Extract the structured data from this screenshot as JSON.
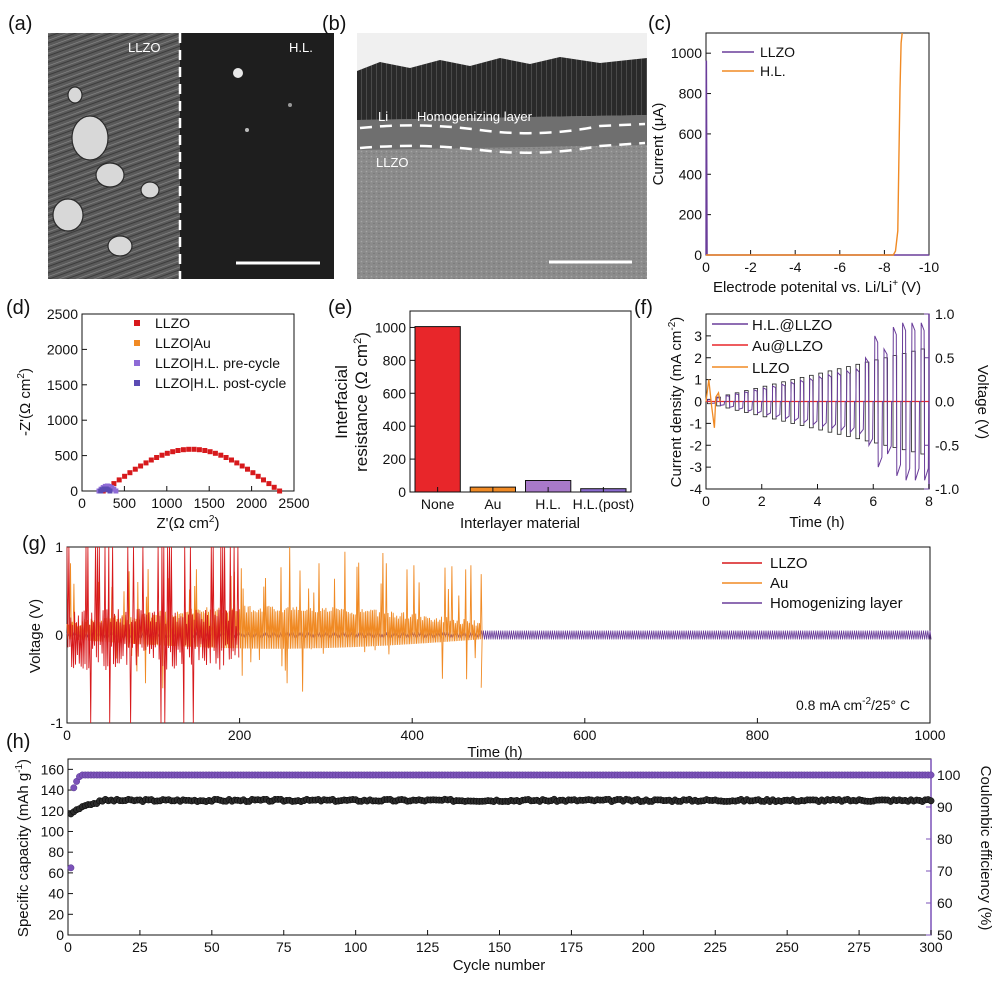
{
  "colors": {
    "llzo": "#d7191c",
    "au": "#f08a24",
    "hl": "#6a3d9a",
    "hl_post": "#5b4bb3",
    "black": "#111111"
  },
  "panel_a": {
    "letter": "(a)",
    "label_left": "LLZO",
    "label_right": "H.L."
  },
  "panel_b": {
    "letter": "(b)",
    "label_li": "Li",
    "label_layer": "Homogenizing layer",
    "label_llzo": "LLZO"
  },
  "chart_data": [
    {
      "id": "c",
      "letter": "(c)",
      "type": "line",
      "xlabel": "Electrode potenital vs. Li/Li",
      "xlabel_sup": "+",
      "xlabel_unit": "(V)",
      "ylabel": "Current (μA)",
      "xlim": [
        0,
        -10
      ],
      "ylim": [
        0,
        1100
      ],
      "xticks": [
        0,
        -2,
        -4,
        -6,
        -8,
        -10
      ],
      "yticks": [
        0,
        200,
        400,
        600,
        800,
        1000
      ],
      "xtick_labels": [
        "0",
        "-2",
        "-4",
        "-6",
        "-8",
        "-10"
      ],
      "ytick_labels": [
        "0",
        "200",
        "400",
        "600",
        "800",
        "1000"
      ],
      "series": [
        {
          "name": "LLZO",
          "color": "#6a3d9a",
          "x": [
            0,
            -0.01,
            -0.02,
            -0.05,
            -10
          ],
          "y": [
            0,
            960,
            960,
            0,
            0
          ]
        },
        {
          "name": "H.L.",
          "color": "#f08a24",
          "x": [
            0,
            -8.4,
            -8.5,
            -8.6,
            -8.65,
            -8.7,
            -8.75,
            -8.8
          ],
          "y": [
            0,
            0,
            20,
            120,
            480,
            820,
            1050,
            1100
          ]
        }
      ]
    },
    {
      "id": "d",
      "letter": "(d)",
      "type": "scatter",
      "xlabel": "Z'(Ω cm",
      "xlabel_sup": "2",
      "xlabel_end": ")",
      "ylabel": "-Z'(Ω cm",
      "ylabel_sup": "2",
      "ylabel_end": ")",
      "xlim": [
        0,
        2500
      ],
      "ylim": [
        0,
        2500
      ],
      "xticks": [
        0,
        500,
        1000,
        1500,
        2000,
        2500
      ],
      "yticks": [
        0,
        500,
        1000,
        1500,
        2000,
        2500
      ],
      "xtick_labels": [
        "0",
        "500",
        "1000",
        "1500",
        "2000",
        "2500"
      ],
      "ytick_labels": [
        "0",
        "500",
        "1000",
        "1500",
        "2000",
        "2500"
      ],
      "series": [
        {
          "name": "LLZO",
          "color": "#d7191c",
          "shape": "square",
          "arc": {
            "x0": 250,
            "x1": 2330,
            "h": 590,
            "n": 34
          }
        },
        {
          "name": "LLZO|Au",
          "color": "#f08a24",
          "shape": "square",
          "arc": {
            "x0": 210,
            "x1": 330,
            "h": 40,
            "n": 7
          }
        },
        {
          "name": "LLZO|H.L. pre-cycle",
          "color": "#8e6bd6",
          "shape": "square",
          "arc": {
            "x0": 200,
            "x1": 400,
            "h": 70,
            "n": 9
          }
        },
        {
          "name": "LLZO|H.L. post-cycle",
          "color": "#5b4bb3",
          "shape": "square",
          "arc": {
            "x0": 220,
            "x1": 330,
            "h": 30,
            "n": 6
          }
        }
      ]
    },
    {
      "id": "e",
      "letter": "(e)",
      "type": "bar",
      "categories": [
        "None",
        "Au",
        "H.L.",
        "H.L.(post)"
      ],
      "values": [
        1005,
        30,
        70,
        20
      ],
      "colors": [
        "#e8262a",
        "#f08a24",
        "#a879c9",
        "#8a6bd0"
      ],
      "xlabel": "Interlayer material",
      "ylabel_line1": "Interfacial",
      "ylabel_line2": "resistance (Ω cm",
      "ylabel_sup": "2",
      "ylabel_end": ")",
      "ylim": [
        0,
        1100
      ],
      "yticks": [
        0,
        200,
        400,
        600,
        800,
        1000
      ],
      "ytick_labels": [
        "0",
        "200",
        "400",
        "600",
        "800",
        "1000"
      ]
    },
    {
      "id": "f",
      "letter": "(f)",
      "type": "line",
      "xlabel": "Time (h)",
      "ylabel_left": "Current density (mA cm",
      "ylabel_left_sup": "-2",
      "ylabel_left_end": ")",
      "ylabel_right": "Voltage (V)",
      "xlim": [
        0,
        8
      ],
      "ylim_left": [
        -4,
        4
      ],
      "ylim_right": [
        -1,
        1
      ],
      "xticks": [
        0,
        2,
        4,
        6,
        8
      ],
      "yticks_left": [
        -4,
        -3,
        -2,
        -1,
        0,
        1,
        2,
        3
      ],
      "yticks_right": [
        -1,
        -0.5,
        0,
        0.5,
        1
      ],
      "xtick_labels": [
        "0",
        "2",
        "4",
        "6",
        "8"
      ],
      "ytick_left_labels": [
        "-4",
        "-3",
        "-2",
        "-1",
        "0",
        "1",
        "2",
        "3"
      ],
      "ytick_right_labels": [
        "-1.0",
        "-0.5",
        "0.0",
        "0.5",
        "1.0"
      ],
      "step_increment": 0.1,
      "steps": 24,
      "step_duration_h": 0.333,
      "series": [
        {
          "name": "H.L.@LLZO",
          "color": "#6a3d9a"
        },
        {
          "name": "Au@LLZO",
          "color": "#e8262a"
        },
        {
          "name": "LLZO",
          "color": "#f08a24"
        }
      ]
    },
    {
      "id": "g",
      "letter": "(g)",
      "type": "line",
      "xlabel": "Time (h)",
      "ylabel": "Voltage (V)",
      "xlim": [
        0,
        1000
      ],
      "ylim": [
        -1,
        1
      ],
      "xticks": [
        0,
        200,
        400,
        600,
        800,
        1000
      ],
      "yticks": [
        -1,
        0,
        1
      ],
      "xtick_labels": [
        "0",
        "200",
        "400",
        "600",
        "800",
        "1000"
      ],
      "ytick_labels": [
        "-1",
        "0",
        "1"
      ],
      "condition": "0.8 mA cm",
      "condition_sup": "-2",
      "condition_end": "/25° C",
      "series": [
        {
          "name": "LLZO",
          "color": "#d7191c",
          "t_end": 200
        },
        {
          "name": "Au",
          "color": "#f08a24",
          "t_end": 480
        },
        {
          "name": "Homogenizing layer",
          "color": "#6a3d9a",
          "t_end": 1000
        }
      ]
    },
    {
      "id": "h",
      "letter": "(h)",
      "type": "scatter",
      "xlabel": "Cycle number",
      "ylabel_left": "Specific capacity (mAh g",
      "ylabel_left_sup": "-1",
      "ylabel_left_end": ")",
      "ylabel_right": "Coulombic efficiency (%)",
      "xlim": [
        0,
        300
      ],
      "ylim_left": [
        0,
        170
      ],
      "ylim_right": [
        50,
        105
      ],
      "xticks": [
        0,
        25,
        50,
        75,
        100,
        125,
        150,
        175,
        200,
        225,
        250,
        275,
        300
      ],
      "xtick_labels": [
        "0",
        "25",
        "50",
        "75",
        "100",
        "125",
        "150",
        "175",
        "200",
        "225",
        "250",
        "275",
        "300"
      ],
      "yticks_left": [
        0,
        20,
        40,
        60,
        80,
        100,
        120,
        140,
        160
      ],
      "ytick_left_labels": [
        "0",
        "20",
        "40",
        "60",
        "80",
        "100",
        "120",
        "140",
        "160"
      ],
      "yticks_right": [
        50,
        60,
        70,
        80,
        90,
        100
      ],
      "ytick_right_labels": [
        "50",
        "60",
        "70",
        "80",
        "90",
        "100"
      ],
      "capacity": {
        "first": [
          117,
          119,
          121,
          122,
          124,
          125,
          126,
          126,
          127,
          127
        ],
        "plateau": 130,
        "color": "#111111"
      },
      "efficiency": {
        "first": [
          71,
          96,
          98,
          99.5,
          100
        ],
        "plateau": 100,
        "color": "#7b52b8"
      }
    }
  ]
}
